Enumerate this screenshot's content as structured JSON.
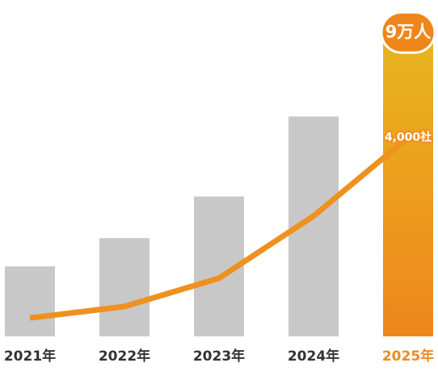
{
  "chart_data": {
    "type": "bar-line",
    "categories": [
      "2021年",
      "2022年",
      "2023年",
      "2024年",
      "2025年"
    ],
    "category_colors": [
      "#333333",
      "#333333",
      "#333333",
      "#333333",
      "#ee8a1f"
    ],
    "series": [
      {
        "type": "bar",
        "colors": [
          "#c8c8c8",
          "#c8c8c8",
          "#c8c8c8",
          "#c8c8c8",
          "#ef861b"
        ],
        "values": [
          2.1,
          2.95,
          4.2,
          6.6,
          9
        ],
        "value_labels": [
          null,
          null,
          null,
          null,
          "9万人"
        ]
      },
      {
        "type": "line",
        "axis": "y2",
        "color": "#f0901e",
        "values": [
          370,
          600,
          1170,
          2420,
          4000
        ],
        "value_labels": [
          null,
          null,
          null,
          null,
          "4,000社"
        ]
      }
    ],
    "ylim": [
      0,
      10
    ],
    "y2lim": [
      0,
      6700
    ]
  }
}
